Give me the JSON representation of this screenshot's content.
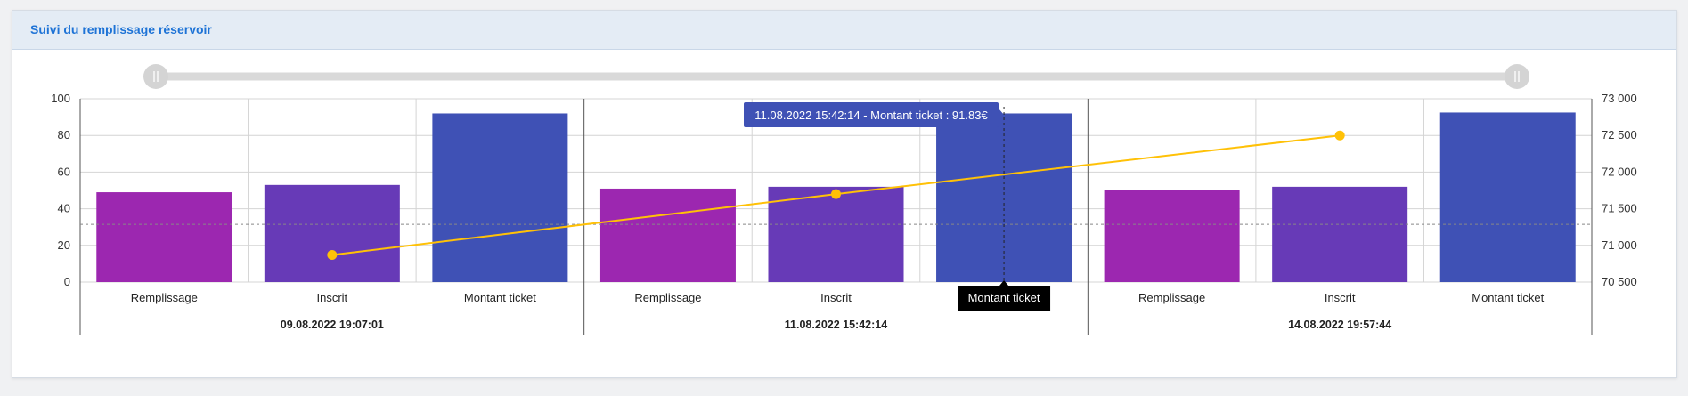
{
  "panel": {
    "title": "Suivi du remplissage réservoir"
  },
  "chart_data": {
    "type": "bar",
    "groups": [
      "09.08.2022 19:07:01",
      "11.08.2022 15:42:14",
      "14.08.2022 19:57:44"
    ],
    "categories": [
      "Remplissage",
      "Inscrit",
      "Montant ticket"
    ],
    "series": [
      {
        "values": [
          49,
          53,
          92
        ]
      },
      {
        "values": [
          51,
          52,
          92
        ]
      },
      {
        "values": [
          50,
          52,
          92.5
        ]
      }
    ],
    "line": {
      "points": [
        [
          0,
          70870
        ],
        [
          1,
          71700
        ],
        [
          2,
          72500
        ]
      ]
    },
    "colors": {
      "Remplissage": "#9c27b0",
      "Inscrit": "#673ab7",
      "Montant ticket": "#3f51b5",
      "line": "#ffc107"
    },
    "ylim": [
      0,
      100
    ],
    "yticks": [
      0,
      20,
      40,
      60,
      80,
      100
    ],
    "y2lim": [
      70500,
      73000
    ],
    "y2ticks": [
      "70 500",
      "71 000",
      "71 500",
      "72 000",
      "72 500",
      "73 000"
    ],
    "tooltip": "11.08.2022 15:42:14 - Montant ticket : 91.83€",
    "crosshair_label": "Montant ticket",
    "crosshair": {
      "group": 1,
      "category": 2,
      "y": 31.5
    }
  }
}
